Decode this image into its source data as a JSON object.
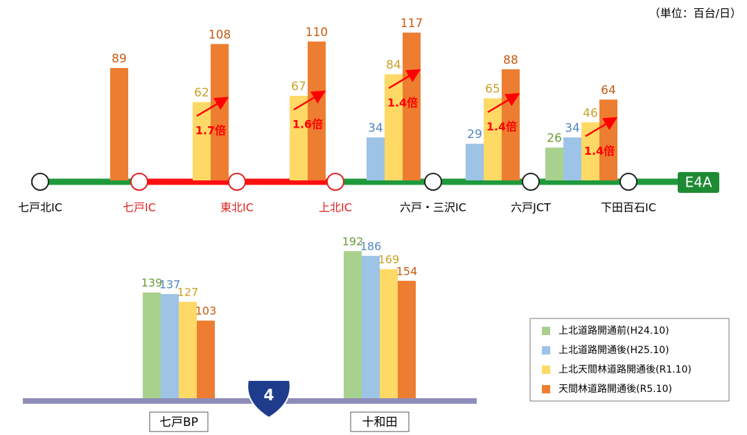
{
  "unit_label": "（単位：百台/日）",
  "chart_data": [
    {
      "type": "bar",
      "road": "E4A",
      "categories": [
        null,
        null,
        null,
        null,
        null,
        null
      ],
      "stations": [
        {
          "name": "七戸北IC",
          "color": "#000000"
        },
        {
          "name": "七戸IC",
          "color": "#e02020"
        },
        {
          "name": "東北IC",
          "color": "#e02020"
        },
        {
          "name": "上北IC",
          "color": "#e02020"
        },
        {
          "name": "六戸・三沢IC",
          "color": "#000000"
        },
        {
          "name": "六戸JCT",
          "color": "#000000"
        },
        {
          "name": "下田百石IC",
          "color": "#000000"
        }
      ],
      "annotations": [
        null,
        "1.7倍",
        "1.6倍",
        "1.4倍",
        "1.4倍",
        "1.4倍"
      ],
      "series": [
        {
          "name": "上北道路開通前(H24.10)",
          "color": "#a9d18e",
          "values": [
            null,
            null,
            null,
            null,
            null,
            26
          ]
        },
        {
          "name": "上北道路開通後(H25.10)",
          "color": "#9dc3e6",
          "values": [
            null,
            null,
            null,
            34,
            29,
            34
          ]
        },
        {
          "name": "上北天間林道路開通後(R1.10)",
          "color": "#ffd966",
          "values": [
            null,
            62,
            67,
            84,
            65,
            46
          ]
        },
        {
          "name": "天間林道路開通後(R5.10)",
          "color": "#ed7d31",
          "values": [
            89,
            108,
            110,
            117,
            88,
            64
          ]
        }
      ]
    },
    {
      "type": "bar",
      "road": "4",
      "categories": [
        "七戸BP",
        "十和田"
      ],
      "series": [
        {
          "color": "#a9d18e",
          "values": [
            139,
            192
          ]
        },
        {
          "color": "#9dc3e6",
          "values": [
            137,
            186
          ]
        },
        {
          "color": "#ffd966",
          "values": [
            127,
            169
          ]
        },
        {
          "color": "#ed7d31",
          "values": [
            103,
            154
          ]
        }
      ]
    }
  ]
}
